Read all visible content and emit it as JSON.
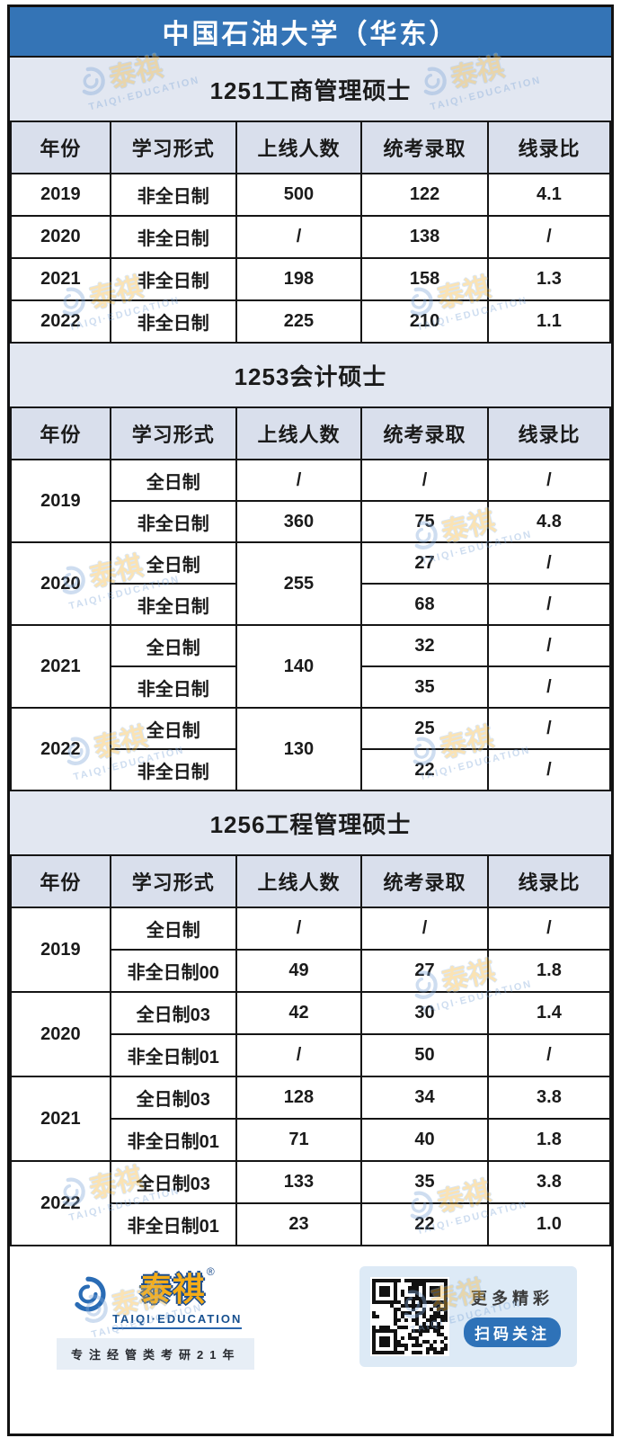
{
  "page": {
    "title": "中国石油大学（华东）"
  },
  "chart_data": [
    {
      "type": "table",
      "title": "1251工商管理硕士",
      "columns": [
        "年份",
        "学习形式",
        "上线人数",
        "统考录取",
        "线录比"
      ],
      "rows": [
        [
          "2019",
          "非全日制",
          "500",
          "122",
          "4.1"
        ],
        [
          "2020",
          "非全日制",
          "/",
          "138",
          "/"
        ],
        [
          "2021",
          "非全日制",
          "198",
          "158",
          "1.3"
        ],
        [
          "2022",
          "非全日制",
          "225",
          "210",
          "1.1"
        ]
      ]
    },
    {
      "type": "table",
      "title": "1253会计硕士",
      "columns": [
        "年份",
        "学习形式",
        "上线人数",
        "统考录取",
        "线录比"
      ],
      "merged_note": "年份 merged per year pair; 上线人数 merged for 2020/2021/2022",
      "rows": [
        [
          "2019",
          "全日制",
          "/",
          "/",
          "/"
        ],
        [
          "2019",
          "非全日制",
          "360",
          "75",
          "4.8"
        ],
        [
          "2020",
          "全日制",
          "255",
          "27",
          "/"
        ],
        [
          "2020",
          "非全日制",
          "255",
          "68",
          "/"
        ],
        [
          "2021",
          "全日制",
          "140",
          "32",
          "/"
        ],
        [
          "2021",
          "非全日制",
          "140",
          "35",
          "/"
        ],
        [
          "2022",
          "全日制",
          "130",
          "25",
          "/"
        ],
        [
          "2022",
          "非全日制",
          "130",
          "22",
          "/"
        ]
      ]
    },
    {
      "type": "table",
      "title": "1256工程管理硕士",
      "columns": [
        "年份",
        "学习形式",
        "上线人数",
        "统考录取",
        "线录比"
      ],
      "merged_note": "年份 merged per year pair",
      "rows": [
        [
          "2019",
          "全日制",
          "/",
          "/",
          "/"
        ],
        [
          "2019",
          "非全日制00",
          "49",
          "27",
          "1.8"
        ],
        [
          "2020",
          "全日制03",
          "42",
          "30",
          "1.4"
        ],
        [
          "2020",
          "非全日制01",
          "/",
          "50",
          "/"
        ],
        [
          "2021",
          "全日制03",
          "128",
          "34",
          "3.8"
        ],
        [
          "2021",
          "非全日制01",
          "71",
          "40",
          "1.8"
        ],
        [
          "2022",
          "全日制03",
          "133",
          "35",
          "3.8"
        ],
        [
          "2022",
          "非全日制01",
          "23",
          "22",
          "1.0"
        ]
      ]
    }
  ],
  "watermark": {
    "zh": "泰祺",
    "en": "TAIQI·EDUCATION"
  },
  "footer": {
    "brand_zh": "泰祺",
    "brand_reg": "®",
    "brand_en": "TAIQI·EDUCATION",
    "slogan": "专注经管类考研21年",
    "qr_caption": "更多精彩",
    "qr_button": "扫码关注"
  },
  "colors": {
    "header_bg": "#3474b6",
    "section_bg": "#e2e7f1",
    "colhead_bg": "#d9dfec",
    "accent_blue": "#2e72b8",
    "brand_gold": "#f5ac17"
  }
}
